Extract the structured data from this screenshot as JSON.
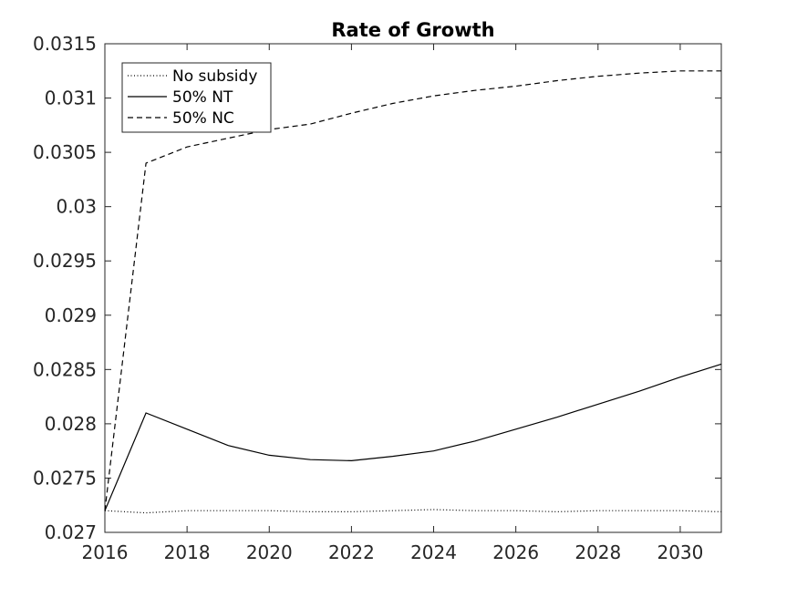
{
  "chart_data": {
    "type": "line",
    "title": "Rate of Growth",
    "xlabel": "",
    "ylabel": "",
    "xlim": [
      2016,
      2031
    ],
    "ylim": [
      0.027,
      0.0315
    ],
    "x_ticks": [
      2016,
      2018,
      2020,
      2022,
      2024,
      2026,
      2028,
      2030
    ],
    "x_tick_labels": [
      "2016",
      "2018",
      "2020",
      "2022",
      "2024",
      "2026",
      "2028",
      "2030"
    ],
    "y_ticks": [
      0.027,
      0.0275,
      0.028,
      0.0285,
      0.029,
      0.0295,
      0.03,
      0.0305,
      0.031,
      0.0315
    ],
    "y_tick_labels": [
      "0.027",
      "0.0275",
      "0.028",
      "0.0285",
      "0.029",
      "0.0295",
      "0.03",
      "0.0305",
      "0.031",
      "0.0315"
    ],
    "grid": false,
    "legend_position": "top-left",
    "x": [
      2016,
      2017,
      2018,
      2019,
      2020,
      2021,
      2022,
      2023,
      2024,
      2025,
      2026,
      2027,
      2028,
      2029,
      2030,
      2031
    ],
    "series": [
      {
        "name": "No subsidy",
        "style": "dotted",
        "color": "#000000",
        "values": [
          0.0272,
          0.02718,
          0.0272,
          0.0272,
          0.0272,
          0.02719,
          0.02719,
          0.0272,
          0.02721,
          0.0272,
          0.0272,
          0.02719,
          0.0272,
          0.0272,
          0.0272,
          0.02719
        ]
      },
      {
        "name": "50% NT",
        "style": "solid",
        "color": "#000000",
        "values": [
          0.0272,
          0.0281,
          0.02795,
          0.0278,
          0.02771,
          0.02767,
          0.02766,
          0.0277,
          0.02775,
          0.02784,
          0.02795,
          0.02806,
          0.02818,
          0.0283,
          0.02843,
          0.02855
        ]
      },
      {
        "name": "50% NC",
        "style": "dashed",
        "color": "#000000",
        "values": [
          0.0272,
          0.0304,
          0.03055,
          0.03063,
          0.03071,
          0.03076,
          0.03086,
          0.03095,
          0.03102,
          0.03107,
          0.03111,
          0.03116,
          0.0312,
          0.03123,
          0.03125,
          0.03125
        ]
      }
    ]
  }
}
